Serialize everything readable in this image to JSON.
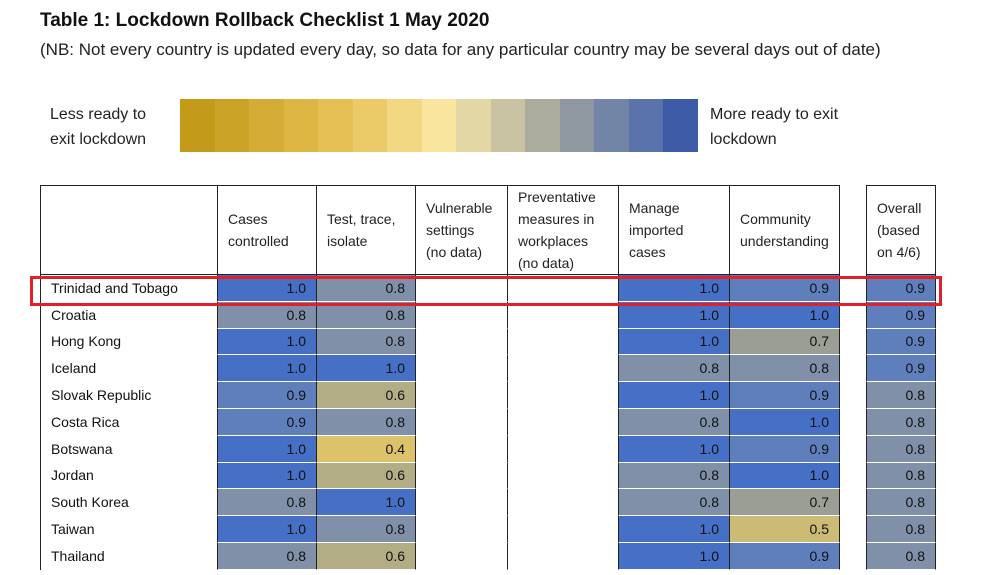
{
  "title": "Table 1: Lockdown Rollback Checklist 1 May 2020",
  "subtitle": "(NB: Not every country is updated every day, so data for any particular country may be several days out of date)",
  "legend": {
    "left": [
      "Less ready to",
      "exit lockdown"
    ],
    "right": [
      "More ready to exit",
      "lockdown"
    ],
    "colors": [
      "#c49a1a",
      "#caa225",
      "#d4ab35",
      "#dcb543",
      "#e4c054",
      "#ebcb67",
      "#f3d884",
      "#fae59e",
      "#e4d7a6",
      "#c9c3a4",
      "#acac9c",
      "#8f98a0",
      "#7285a6",
      "#5a73aa",
      "#3d5aa7"
    ]
  },
  "chart_data": {
    "type": "table",
    "columns": [
      {
        "label": [
          "",
          ""
        ],
        "width": 176
      },
      {
        "label": [
          "Cases",
          "controlled"
        ],
        "width": 99
      },
      {
        "label": [
          "Test, trace,",
          "isolate"
        ],
        "width": 99
      },
      {
        "label": [
          "Vulnerable",
          "settings",
          "(no data)"
        ],
        "width": 92
      },
      {
        "label": [
          "Preventative",
          "measures in",
          "workplaces",
          "(no data)"
        ],
        "width": 111
      },
      {
        "label": [
          "Manage",
          "imported",
          "cases"
        ],
        "width": 111
      },
      {
        "label": [
          "Community",
          "understanding"
        ],
        "width": 111
      }
    ],
    "overall_label": [
      "Overall",
      "(based",
      "on 4/6)"
    ],
    "rows": [
      {
        "country": "Trinidad and Tobago",
        "cases": "1.0",
        "test": "0.8",
        "vuln": "",
        "prev": "",
        "imported": "1.0",
        "community": "0.9",
        "overall": "0.9"
      },
      {
        "country": "Croatia",
        "cases": "0.8",
        "test": "0.8",
        "vuln": "",
        "prev": "",
        "imported": "1.0",
        "community": "1.0",
        "overall": "0.9"
      },
      {
        "country": "Hong Kong",
        "cases": "1.0",
        "test": "0.8",
        "vuln": "",
        "prev": "",
        "imported": "1.0",
        "community": "0.7",
        "overall": "0.9"
      },
      {
        "country": "Iceland",
        "cases": "1.0",
        "test": "1.0",
        "vuln": "",
        "prev": "",
        "imported": "0.8",
        "community": "0.8",
        "overall": "0.9"
      },
      {
        "country": "Slovak Republic",
        "cases": "0.9",
        "test": "0.6",
        "vuln": "",
        "prev": "",
        "imported": "1.0",
        "community": "0.9",
        "overall": "0.8"
      },
      {
        "country": "Costa Rica",
        "cases": "0.9",
        "test": "0.8",
        "vuln": "",
        "prev": "",
        "imported": "0.8",
        "community": "1.0",
        "overall": "0.8"
      },
      {
        "country": "Botswana",
        "cases": "1.0",
        "test": "0.4",
        "vuln": "",
        "prev": "",
        "imported": "1.0",
        "community": "0.9",
        "overall": "0.8"
      },
      {
        "country": "Jordan",
        "cases": "1.0",
        "test": "0.6",
        "vuln": "",
        "prev": "",
        "imported": "0.8",
        "community": "1.0",
        "overall": "0.8"
      },
      {
        "country": "South Korea",
        "cases": "0.8",
        "test": "1.0",
        "vuln": "",
        "prev": "",
        "imported": "0.8",
        "community": "0.7",
        "overall": "0.8"
      },
      {
        "country": "Taiwan",
        "cases": "1.0",
        "test": "0.8",
        "vuln": "",
        "prev": "",
        "imported": "1.0",
        "community": "0.5",
        "overall": "0.8"
      },
      {
        "country": "Thailand",
        "cases": "0.8",
        "test": "0.6",
        "vuln": "",
        "prev": "",
        "imported": "1.0",
        "community": "0.9",
        "overall": "0.8"
      }
    ],
    "value_colors": {
      "1.0": "#4570c6",
      "0.9": "#5f7fbc",
      "0.8": "#7f90a8",
      "0.7": "#9a9e94",
      "0.6": "#b3ad86",
      "0.5": "#cbbb74",
      "0.4": "#dcc26a"
    },
    "highlighted_row": "Trinidad and Tobago"
  }
}
